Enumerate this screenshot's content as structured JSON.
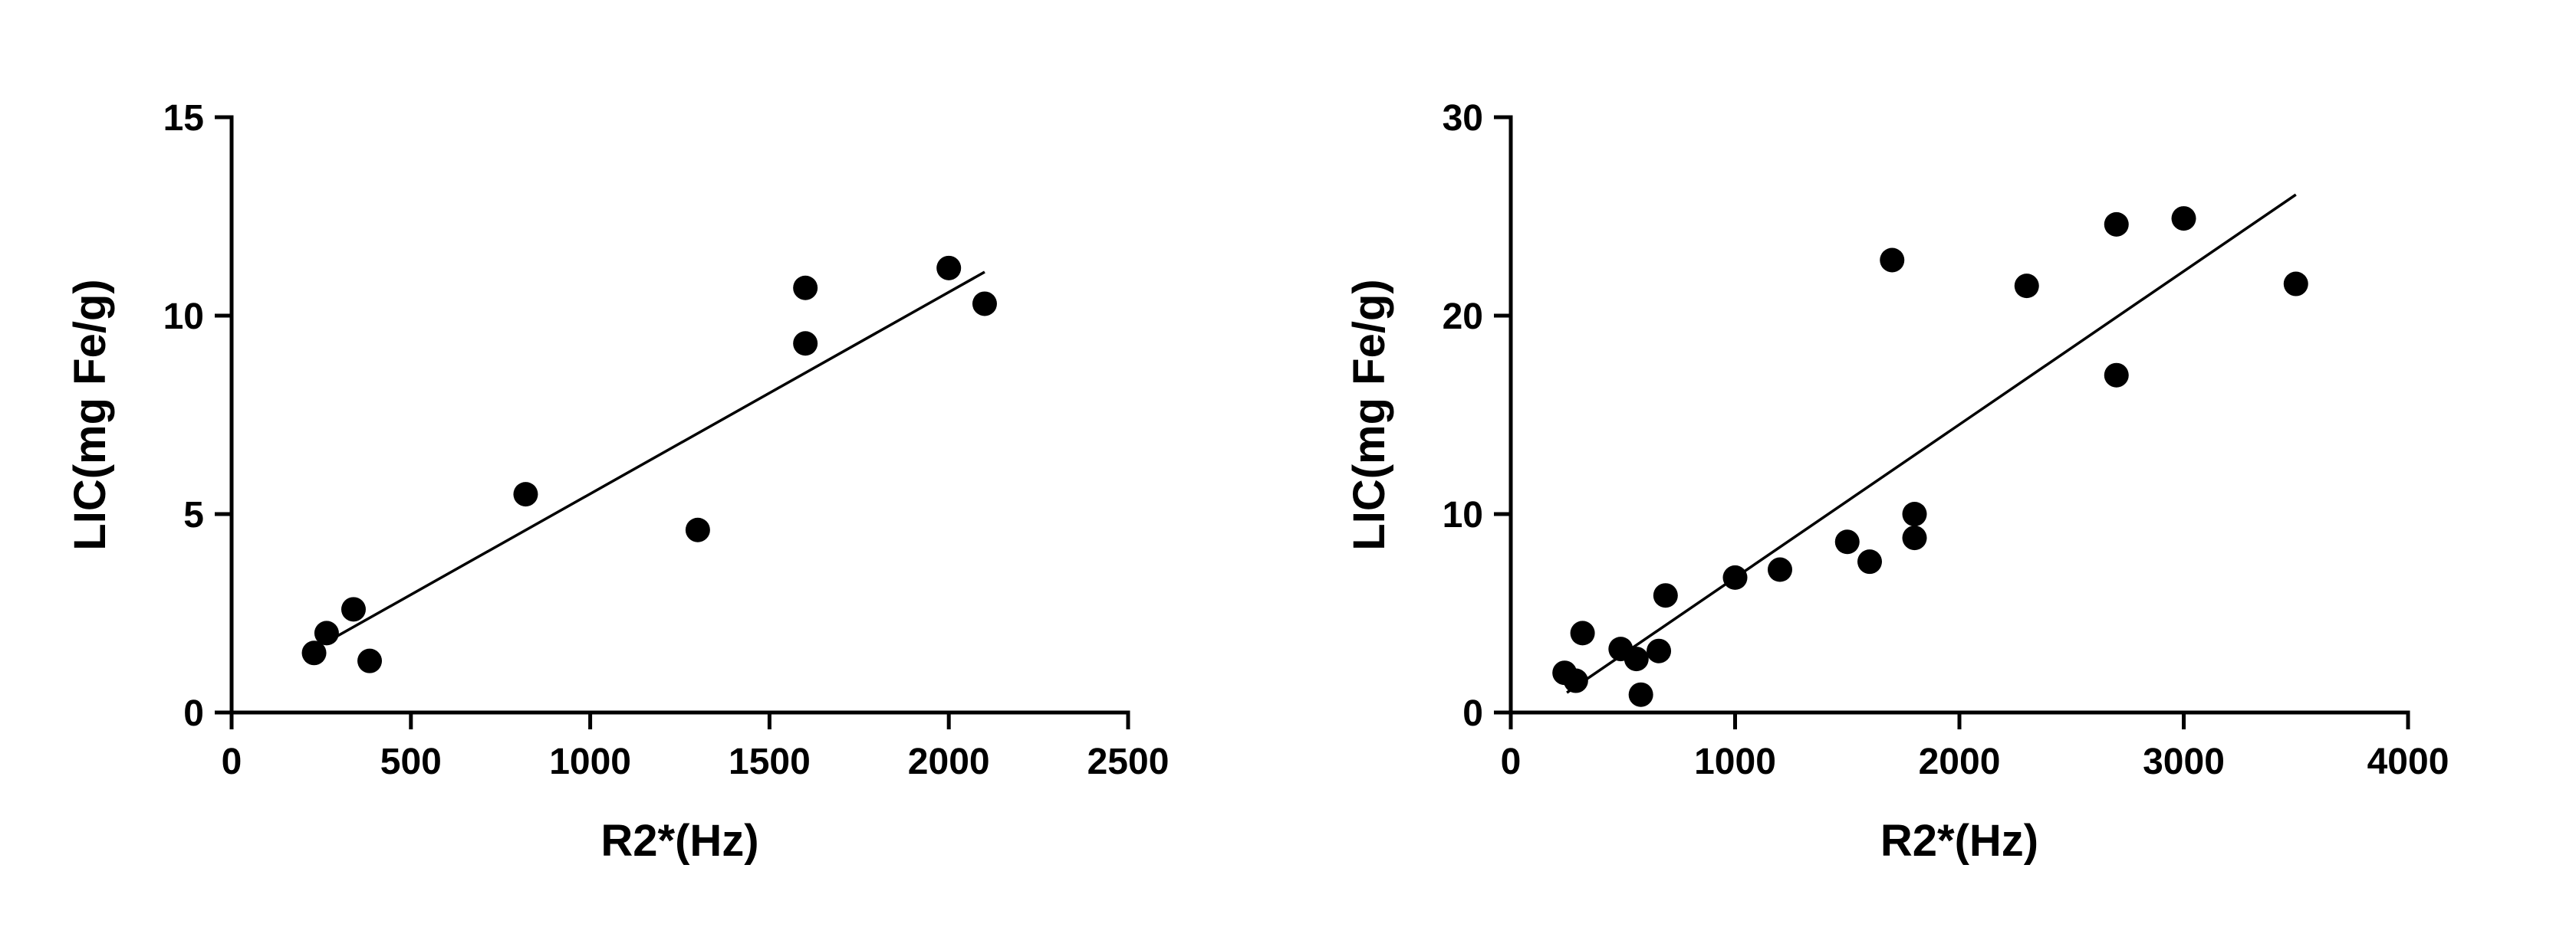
{
  "chart_data": [
    {
      "type": "scatter",
      "title": "",
      "xlabel": "R2*(Hz)",
      "ylabel": "LIC(mg Fe/g)",
      "xlim": [
        0,
        2500
      ],
      "ylim": [
        0,
        15
      ],
      "xticks": [
        "0",
        "500",
        "1000",
        "1500",
        "2000",
        "2500"
      ],
      "yticks": [
        "0",
        "5",
        "10",
        "15"
      ],
      "grid": false,
      "points": [
        {
          "x": 230,
          "y": 1.5
        },
        {
          "x": 265,
          "y": 2.0
        },
        {
          "x": 340,
          "y": 2.6
        },
        {
          "x": 385,
          "y": 1.3
        },
        {
          "x": 820,
          "y": 5.5
        },
        {
          "x": 1300,
          "y": 4.6
        },
        {
          "x": 1600,
          "y": 10.7
        },
        {
          "x": 1600,
          "y": 9.3
        },
        {
          "x": 2000,
          "y": 11.2
        },
        {
          "x": 2100,
          "y": 10.3
        }
      ],
      "fit_line": [
        {
          "x": 260,
          "y": 1.75
        },
        {
          "x": 2100,
          "y": 11.1
        }
      ]
    },
    {
      "type": "scatter",
      "title": "",
      "xlabel": "R2*(Hz)",
      "ylabel": "LIC(mg Fe/g)",
      "xlim": [
        0,
        4000
      ],
      "ylim": [
        0,
        30
      ],
      "xticks": [
        "0",
        "1000",
        "2000",
        "3000",
        "4000"
      ],
      "yticks": [
        "0",
        "10",
        "20",
        "30"
      ],
      "grid": false,
      "points": [
        {
          "x": 240,
          "y": 2.0
        },
        {
          "x": 290,
          "y": 1.6
        },
        {
          "x": 320,
          "y": 4.0
        },
        {
          "x": 490,
          "y": 3.2
        },
        {
          "x": 560,
          "y": 2.7
        },
        {
          "x": 580,
          "y": 0.9
        },
        {
          "x": 660,
          "y": 3.1
        },
        {
          "x": 690,
          "y": 5.9
        },
        {
          "x": 1000,
          "y": 6.8
        },
        {
          "x": 1200,
          "y": 7.2
        },
        {
          "x": 1500,
          "y": 8.6
        },
        {
          "x": 1600,
          "y": 7.6
        },
        {
          "x": 1700,
          "y": 22.8
        },
        {
          "x": 1800,
          "y": 10.0
        },
        {
          "x": 1800,
          "y": 8.8
        },
        {
          "x": 2300,
          "y": 21.5
        },
        {
          "x": 2700,
          "y": 24.6
        },
        {
          "x": 2700,
          "y": 17.0
        },
        {
          "x": 3000,
          "y": 24.9
        },
        {
          "x": 3500,
          "y": 21.6
        }
      ],
      "fit_line": [
        {
          "x": 250,
          "y": 1.0
        },
        {
          "x": 3500,
          "y": 26.1
        }
      ]
    }
  ]
}
